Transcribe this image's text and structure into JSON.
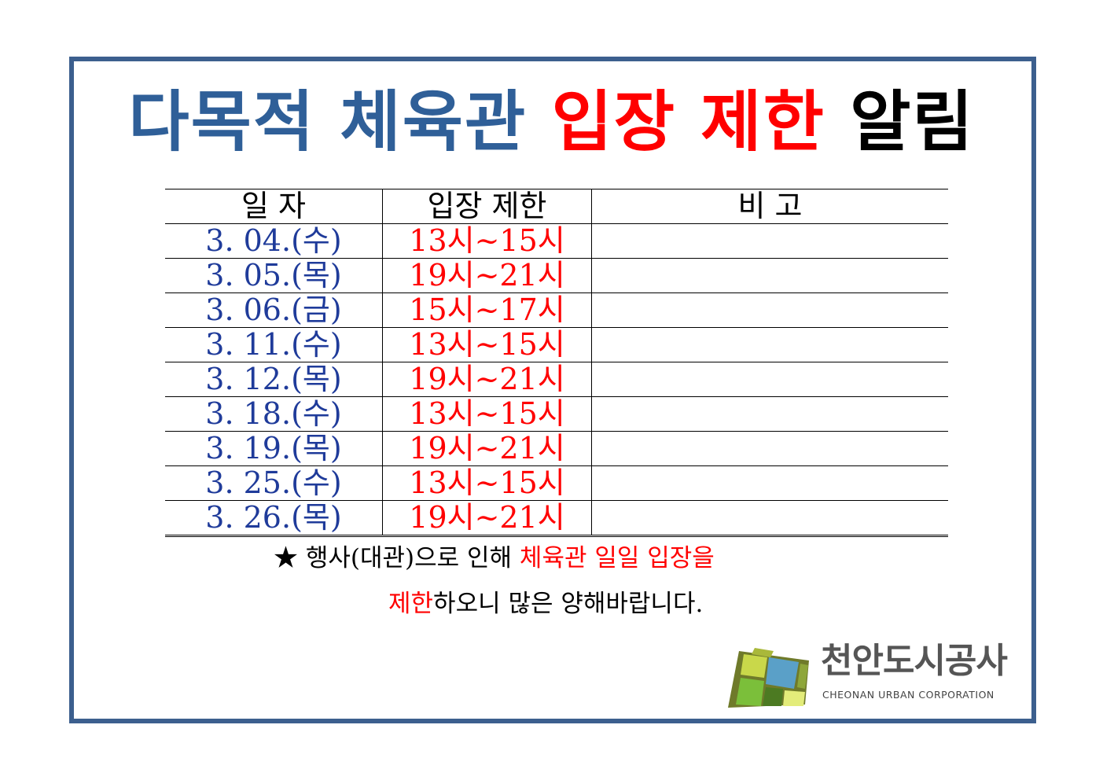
{
  "title": {
    "part1": "다목적 체육관 ",
    "part2": "입장 제한 ",
    "part3": "알림",
    "colors": {
      "blue": "#2f5f98",
      "red": "#ff0000",
      "black": "#000000"
    }
  },
  "table": {
    "headers": [
      "일 자",
      "입장 제한",
      "비 고"
    ],
    "rows": [
      {
        "date": "3. 04.(수)",
        "time": "13시~15시",
        "note": ""
      },
      {
        "date": "3. 05.(목)",
        "time": "19시~21시",
        "note": ""
      },
      {
        "date": "3. 06.(금)",
        "time": "15시~17시",
        "note": ""
      },
      {
        "date": "3. 11.(수)",
        "time": "13시~15시",
        "note": ""
      },
      {
        "date": "3. 12.(목)",
        "time": "19시~21시",
        "note": ""
      },
      {
        "date": "3. 18.(수)",
        "time": "13시~15시",
        "note": ""
      },
      {
        "date": "3. 19.(목)",
        "time": "19시~21시",
        "note": ""
      },
      {
        "date": "3. 25.(수)",
        "time": "13시~15시",
        "note": ""
      },
      {
        "date": "3. 26.(목)",
        "time": "19시~21시",
        "note": ""
      }
    ]
  },
  "notice": {
    "line1_a": "★ 행사(대관)으로 인해 ",
    "line1_b": "체육관 일일 입장을",
    "line2_a": "제한",
    "line2_b": "하오니 많은 양해바랍니다."
  },
  "logo": {
    "name": "천안도시공사",
    "sub": "CHEONAN URBAN CORPORATION"
  }
}
